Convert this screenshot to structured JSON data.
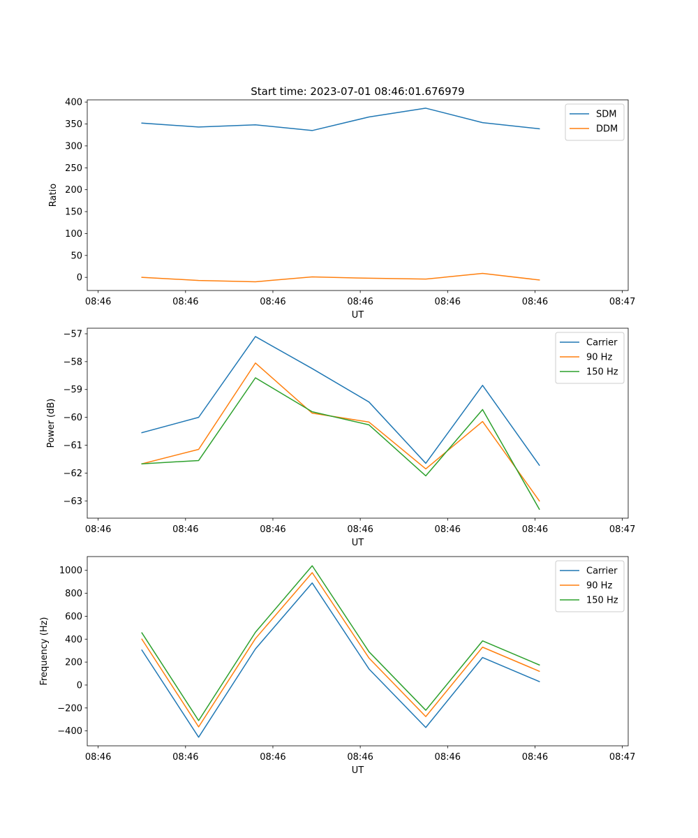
{
  "chart_data": [
    {
      "type": "line",
      "title": "Start time: 2023-07-01 08:46:01.676979",
      "xlabel": "UT",
      "ylabel": "Ratio",
      "xlim": [
        -0.625,
        5.567
      ],
      "ylim": [
        -30,
        405
      ],
      "x_ticks": [
        {
          "value": -0.5,
          "label": "08:46"
        },
        {
          "value": 0.5,
          "label": "08:46"
        },
        {
          "value": 1.5,
          "label": "08:46"
        },
        {
          "value": 2.5,
          "label": "08:46"
        },
        {
          "value": 3.5,
          "label": "08:46"
        },
        {
          "value": 4.5,
          "label": "08:46"
        },
        {
          "value": 5.5,
          "label": "08:47"
        }
      ],
      "y_ticks": [
        {
          "value": 0,
          "label": "0"
        },
        {
          "value": 50,
          "label": "50"
        },
        {
          "value": 100,
          "label": "100"
        },
        {
          "value": 150,
          "label": "150"
        },
        {
          "value": 200,
          "label": "200"
        },
        {
          "value": 250,
          "label": "250"
        },
        {
          "value": 300,
          "label": "300"
        },
        {
          "value": 350,
          "label": "350"
        },
        {
          "value": 400,
          "label": "400"
        }
      ],
      "x": [
        0,
        0.65,
        1.3,
        1.95,
        2.6,
        3.25,
        3.9,
        4.55
      ],
      "series": [
        {
          "name": "SDM",
          "color": "#1f77b4",
          "values": [
            352,
            343,
            348,
            335,
            366,
            386,
            353,
            339
          ]
        },
        {
          "name": "DDM",
          "color": "#ff7f0e",
          "values": [
            0,
            -7,
            -10,
            1,
            -2,
            -4,
            9,
            -6
          ]
        }
      ],
      "legend": "top-right",
      "grid": false
    },
    {
      "type": "line",
      "title": "",
      "xlabel": "UT",
      "ylabel": "Power (dB)",
      "xlim": [
        -0.625,
        5.567
      ],
      "ylim": [
        -63.62,
        -56.8
      ],
      "x_ticks": [
        {
          "value": -0.5,
          "label": "08:46"
        },
        {
          "value": 0.5,
          "label": "08:46"
        },
        {
          "value": 1.5,
          "label": "08:46"
        },
        {
          "value": 2.5,
          "label": "08:46"
        },
        {
          "value": 3.5,
          "label": "08:46"
        },
        {
          "value": 4.5,
          "label": "08:46"
        },
        {
          "value": 5.5,
          "label": "08:47"
        }
      ],
      "y_ticks": [
        {
          "value": -63,
          "label": "−63"
        },
        {
          "value": -62,
          "label": "−62"
        },
        {
          "value": -61,
          "label": "−61"
        },
        {
          "value": -60,
          "label": "−60"
        },
        {
          "value": -59,
          "label": "−59"
        },
        {
          "value": -58,
          "label": "−58"
        },
        {
          "value": -57,
          "label": "−57"
        }
      ],
      "x": [
        0,
        0.65,
        1.3,
        1.95,
        2.6,
        3.25,
        3.9,
        4.55
      ],
      "series": [
        {
          "name": "Carrier",
          "color": "#1f77b4",
          "values": [
            -60.55,
            -60.0,
            -57.1,
            -58.25,
            -59.45,
            -61.65,
            -58.85,
            -61.72
          ]
        },
        {
          "name": "90 Hz",
          "color": "#ff7f0e",
          "values": [
            -61.67,
            -61.15,
            -58.05,
            -59.85,
            -60.17,
            -61.85,
            -60.15,
            -63.0
          ]
        },
        {
          "name": "150 Hz",
          "color": "#2ca02c",
          "values": [
            -61.67,
            -61.55,
            -58.58,
            -59.8,
            -60.27,
            -62.1,
            -59.72,
            -63.3
          ]
        }
      ],
      "legend": "top-right",
      "grid": false
    },
    {
      "type": "line",
      "title": "",
      "xlabel": "UT",
      "ylabel": "Frequency (Hz)",
      "xlim": [
        -0.625,
        5.567
      ],
      "ylim": [
        -530,
        1120
      ],
      "x_ticks": [
        {
          "value": -0.5,
          "label": "08:46"
        },
        {
          "value": 0.5,
          "label": "08:46"
        },
        {
          "value": 1.5,
          "label": "08:46"
        },
        {
          "value": 2.5,
          "label": "08:46"
        },
        {
          "value": 3.5,
          "label": "08:46"
        },
        {
          "value": 4.5,
          "label": "08:46"
        },
        {
          "value": 5.5,
          "label": "08:47"
        }
      ],
      "y_ticks": [
        {
          "value": -400,
          "label": "−400"
        },
        {
          "value": -200,
          "label": "−200"
        },
        {
          "value": 0,
          "label": "0"
        },
        {
          "value": 200,
          "label": "200"
        },
        {
          "value": 400,
          "label": "400"
        },
        {
          "value": 600,
          "label": "600"
        },
        {
          "value": 800,
          "label": "800"
        },
        {
          "value": 1000,
          "label": "1000"
        }
      ],
      "x": [
        0,
        0.65,
        1.3,
        1.95,
        2.6,
        3.25,
        3.9,
        4.55
      ],
      "series": [
        {
          "name": "Carrier",
          "color": "#1f77b4",
          "values": [
            305,
            -455,
            315,
            890,
            140,
            -370,
            240,
            30
          ]
        },
        {
          "name": "90 Hz",
          "color": "#ff7f0e",
          "values": [
            400,
            -365,
            405,
            980,
            235,
            -275,
            330,
            120
          ]
        },
        {
          "name": "150 Hz",
          "color": "#2ca02c",
          "values": [
            455,
            -310,
            460,
            1040,
            290,
            -220,
            385,
            175
          ]
        }
      ],
      "legend": "top-right",
      "grid": false
    }
  ]
}
